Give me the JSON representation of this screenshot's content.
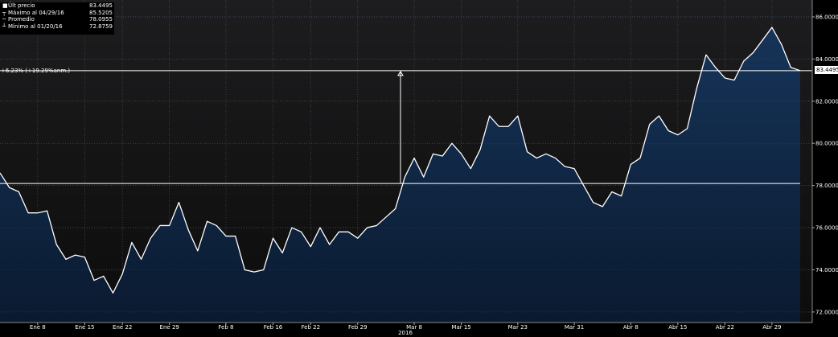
{
  "legend": {
    "items": [
      {
        "label": "Últ precio",
        "value": "83.4495",
        "icon": "square-icon"
      },
      {
        "label": "Máximo al 04/29/16",
        "value": "85.5205",
        "icon": "max-marker-icon"
      },
      {
        "label": "Promedio",
        "value": "78.0955",
        "icon": "line-icon"
      },
      {
        "label": "Mínimo al 01/20/16",
        "value": "72.8759",
        "icon": "min-marker-icon"
      }
    ]
  },
  "annotation": "+6.23% (+19.29%anm.)",
  "price_tag": "83.4495",
  "colors": {
    "background": "#000000",
    "plot_top": "#1c1c1e",
    "area_fill_top": "#163459",
    "area_fill_bottom": "#0d2039",
    "line": "#ffffff",
    "grid": "#6a6a6a"
  },
  "chart_data": {
    "type": "area",
    "xlabel": "2016",
    "ylim": [
      71.5,
      86.8
    ],
    "yticks": [
      72,
      74,
      76,
      78,
      80,
      82,
      84,
      86
    ],
    "ytick_labels": [
      "72.0000",
      "74.0000",
      "76.0000",
      "78.0000",
      "80.0000",
      "82.0000",
      "84.0000",
      "86.0000"
    ],
    "x_tick_labels": [
      "Ene 8",
      "Ene 15",
      "Ene 22",
      "Ene 29",
      "Feb 8",
      "Feb 16",
      "Feb 22",
      "Feb 29",
      "Mar 8",
      "Mar 15",
      "Mar 23",
      "Mar 31",
      "Abr 8",
      "Abr 15",
      "Abr 22",
      "Abr 29"
    ],
    "x_tick_positions": [
      4,
      9,
      13,
      18,
      24,
      29,
      33,
      38,
      44,
      49,
      55,
      61,
      67,
      72,
      77,
      82
    ],
    "average": 78.0955,
    "last_price": 83.4495,
    "values": [
      78.6,
      77.9,
      77.7,
      76.7,
      76.7,
      76.8,
      75.2,
      74.5,
      74.7,
      74.6,
      73.5,
      73.7,
      72.9,
      73.8,
      75.3,
      74.5,
      75.5,
      76.1,
      76.1,
      77.2,
      75.9,
      74.9,
      76.3,
      76.1,
      75.6,
      75.6,
      74.0,
      73.9,
      74.0,
      75.5,
      74.8,
      76.0,
      75.8,
      75.1,
      76.0,
      75.2,
      75.8,
      75.8,
      75.5,
      76.0,
      76.1,
      76.5,
      76.9,
      78.4,
      79.3,
      78.4,
      79.5,
      79.4,
      80.0,
      79.5,
      78.8,
      79.7,
      81.3,
      80.8,
      80.8,
      81.3,
      79.6,
      79.3,
      79.5,
      79.3,
      78.9,
      78.8,
      78.0,
      77.2,
      77.0,
      77.7,
      77.5,
      79.0,
      79.3,
      80.9,
      81.3,
      80.6,
      80.4,
      80.7,
      82.6,
      84.2,
      83.6,
      83.1,
      83.0,
      83.9,
      84.3,
      84.9,
      85.5,
      84.7,
      83.6,
      83.4495
    ]
  }
}
